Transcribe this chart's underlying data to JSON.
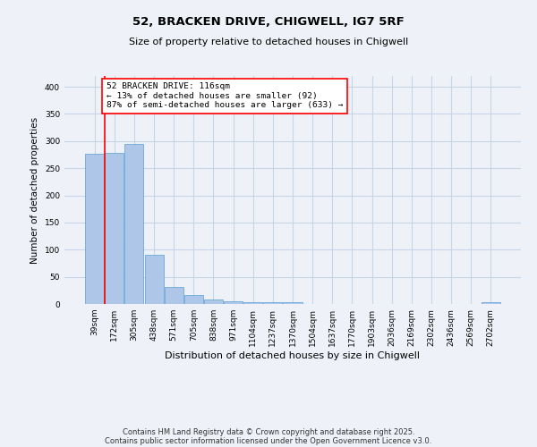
{
  "title1": "52, BRACKEN DRIVE, CHIGWELL, IG7 5RF",
  "title2": "Size of property relative to detached houses in Chigwell",
  "xlabel": "Distribution of detached houses by size in Chigwell",
  "ylabel": "Number of detached properties",
  "categories": [
    "39sqm",
    "172sqm",
    "305sqm",
    "438sqm",
    "571sqm",
    "705sqm",
    "838sqm",
    "971sqm",
    "1104sqm",
    "1237sqm",
    "1370sqm",
    "1504sqm",
    "1637sqm",
    "1770sqm",
    "1903sqm",
    "2036sqm",
    "2169sqm",
    "2302sqm",
    "2436sqm",
    "2569sqm",
    "2702sqm"
  ],
  "values": [
    277,
    278,
    295,
    90,
    32,
    16,
    8,
    5,
    3,
    3,
    4,
    0,
    0,
    0,
    0,
    0,
    0,
    0,
    0,
    0,
    3
  ],
  "bar_color": "#aec6e8",
  "bar_edge_color": "#5a9fd4",
  "marker_line_color": "red",
  "annotation_text": "52 BRACKEN DRIVE: 116sqm\n← 13% of detached houses are smaller (92)\n87% of semi-detached houses are larger (633) →",
  "annotation_box_color": "white",
  "annotation_box_edge": "red",
  "ylim": [
    0,
    420
  ],
  "yticks": [
    0,
    50,
    100,
    150,
    200,
    250,
    300,
    350,
    400
  ],
  "footer1": "Contains HM Land Registry data © Crown copyright and database right 2025.",
  "footer2": "Contains public sector information licensed under the Open Government Licence v3.0.",
  "bg_color": "#eef2f8",
  "grid_color": "#c8d4e8",
  "title_fontsize": 9.5,
  "subtitle_fontsize": 8,
  "ylabel_fontsize": 7.5,
  "xlabel_fontsize": 8,
  "tick_fontsize": 6.5,
  "footer_fontsize": 6
}
